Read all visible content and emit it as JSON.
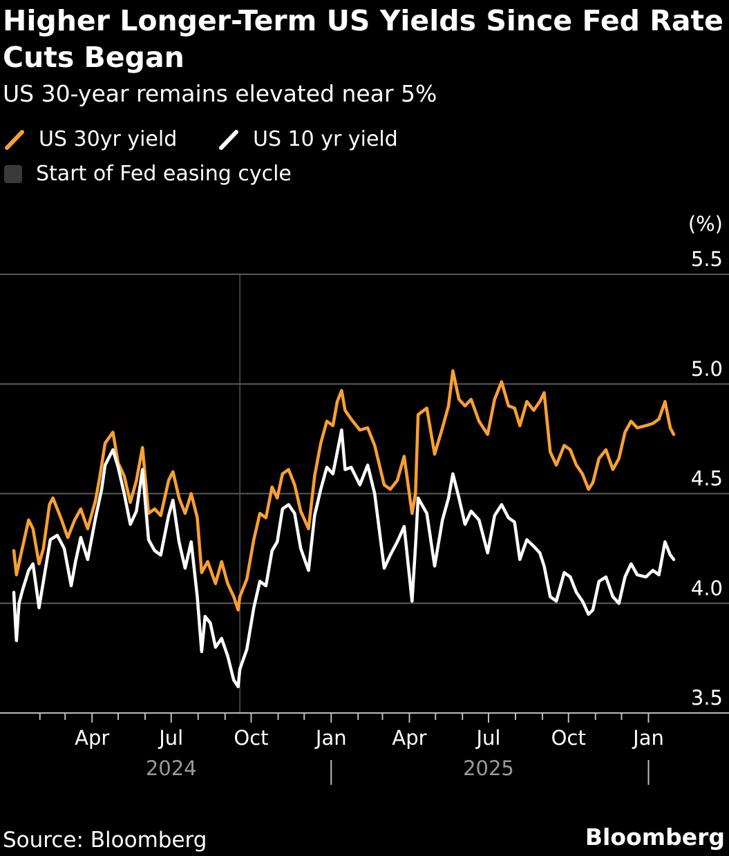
{
  "title": "Higher Longer-Term US Yields Since Fed Rate Cuts Began",
  "subtitle": "US 30-year remains elevated near 5%",
  "source": "Source: Bloomberg",
  "brand": "Bloomberg",
  "colors": {
    "background": "#000000",
    "series_30yr": "#f7a033",
    "series_10yr": "#ffffff",
    "event_line": "#555555",
    "gridline": "#5a5a5a"
  },
  "chart_data": {
    "type": "line",
    "title": "Higher Longer-Term US Yields Since Fed Rate Cuts Began",
    "subtitle": "US 30-year remains elevated near 5%",
    "ylabel": "(%)",
    "ylim": [
      3.5,
      5.5
    ],
    "yticks": [
      "3.5",
      "4.0",
      "4.5",
      "5.0",
      "5.5"
    ],
    "x_range": [
      "2024-01-02",
      "2026-01-30"
    ],
    "xticks": [
      {
        "label": "Apr",
        "date": "2024-04-01"
      },
      {
        "label": "Jul",
        "date": "2024-07-01"
      },
      {
        "label": "Oct",
        "date": "2024-10-01"
      },
      {
        "label": "Jan",
        "date": "2025-01-01"
      },
      {
        "label": "Apr",
        "date": "2025-04-01"
      },
      {
        "label": "Jul",
        "date": "2025-07-01"
      },
      {
        "label": "Oct",
        "date": "2025-10-01"
      },
      {
        "label": "Jan",
        "date": "2026-01-01"
      }
    ],
    "year_labels": [
      {
        "label": "2024",
        "date": "2024-07-01"
      },
      {
        "label": "2025",
        "date": "2025-07-01"
      }
    ],
    "year_dividers": [
      "2025-01-01",
      "2026-01-01"
    ],
    "legend": [
      "US 30yr yield",
      "US 10 yr yield",
      "Start of Fed easing cycle"
    ],
    "legend_placement": "top-left",
    "grid": "horizontal",
    "event": {
      "label": "Start of Fed easing cycle",
      "date": "2024-09-18"
    },
    "series": [
      {
        "name": "US 30yr yield",
        "color": "#f7a033",
        "points": [
          [
            "2024-01-02",
            4.24
          ],
          [
            "2024-01-05",
            4.13
          ],
          [
            "2024-01-10",
            4.22
          ],
          [
            "2024-01-19",
            4.38
          ],
          [
            "2024-01-24",
            4.34
          ],
          [
            "2024-01-31",
            4.18
          ],
          [
            "2024-02-05",
            4.25
          ],
          [
            "2024-02-12",
            4.45
          ],
          [
            "2024-02-16",
            4.48
          ],
          [
            "2024-02-26",
            4.38
          ],
          [
            "2024-03-04",
            4.3
          ],
          [
            "2024-03-12",
            4.38
          ],
          [
            "2024-03-19",
            4.43
          ],
          [
            "2024-03-27",
            4.34
          ],
          [
            "2024-04-05",
            4.47
          ],
          [
            "2024-04-10",
            4.58
          ],
          [
            "2024-04-16",
            4.73
          ],
          [
            "2024-04-25",
            4.78
          ],
          [
            "2024-05-01",
            4.64
          ],
          [
            "2024-05-08",
            4.58
          ],
          [
            "2024-05-15",
            4.46
          ],
          [
            "2024-05-22",
            4.56
          ],
          [
            "2024-05-29",
            4.71
          ],
          [
            "2024-06-05",
            4.41
          ],
          [
            "2024-06-12",
            4.43
          ],
          [
            "2024-06-19",
            4.4
          ],
          [
            "2024-06-28",
            4.56
          ],
          [
            "2024-07-03",
            4.6
          ],
          [
            "2024-07-10",
            4.48
          ],
          [
            "2024-07-17",
            4.41
          ],
          [
            "2024-07-24",
            4.5
          ],
          [
            "2024-07-31",
            4.39
          ],
          [
            "2024-08-05",
            4.14
          ],
          [
            "2024-08-12",
            4.19
          ],
          [
            "2024-08-21",
            4.09
          ],
          [
            "2024-08-28",
            4.19
          ],
          [
            "2024-09-04",
            4.09
          ],
          [
            "2024-09-11",
            4.03
          ],
          [
            "2024-09-16",
            3.97
          ],
          [
            "2024-09-18",
            4.03
          ],
          [
            "2024-09-26",
            4.11
          ],
          [
            "2024-10-04",
            4.29
          ],
          [
            "2024-10-11",
            4.41
          ],
          [
            "2024-10-18",
            4.39
          ],
          [
            "2024-10-25",
            4.53
          ],
          [
            "2024-10-31",
            4.48
          ],
          [
            "2024-11-06",
            4.59
          ],
          [
            "2024-11-13",
            4.61
          ],
          [
            "2024-11-20",
            4.54
          ],
          [
            "2024-11-27",
            4.42
          ],
          [
            "2024-12-06",
            4.34
          ],
          [
            "2024-12-13",
            4.58
          ],
          [
            "2024-12-20",
            4.73
          ],
          [
            "2024-12-27",
            4.83
          ],
          [
            "2025-01-03",
            4.81
          ],
          [
            "2025-01-08",
            4.92
          ],
          [
            "2025-01-13",
            4.97
          ],
          [
            "2025-01-17",
            4.88
          ],
          [
            "2025-01-24",
            4.84
          ],
          [
            "2025-02-03",
            4.79
          ],
          [
            "2025-02-12",
            4.8
          ],
          [
            "2025-02-20",
            4.72
          ],
          [
            "2025-03-03",
            4.54
          ],
          [
            "2025-03-10",
            4.52
          ],
          [
            "2025-03-18",
            4.56
          ],
          [
            "2025-03-26",
            4.67
          ],
          [
            "2025-04-04",
            4.41
          ],
          [
            "2025-04-08",
            4.5
          ],
          [
            "2025-04-11",
            4.86
          ],
          [
            "2025-04-21",
            4.89
          ],
          [
            "2025-04-30",
            4.68
          ],
          [
            "2025-05-09",
            4.8
          ],
          [
            "2025-05-16",
            4.9
          ],
          [
            "2025-05-21",
            5.06
          ],
          [
            "2025-05-28",
            4.93
          ],
          [
            "2025-06-04",
            4.9
          ],
          [
            "2025-06-11",
            4.93
          ],
          [
            "2025-06-20",
            4.83
          ],
          [
            "2025-06-30",
            4.77
          ],
          [
            "2025-07-08",
            4.93
          ],
          [
            "2025-07-16",
            5.01
          ],
          [
            "2025-07-24",
            4.9
          ],
          [
            "2025-07-31",
            4.89
          ],
          [
            "2025-08-06",
            4.81
          ],
          [
            "2025-08-14",
            4.92
          ],
          [
            "2025-08-22",
            4.88
          ],
          [
            "2025-08-29",
            4.92
          ],
          [
            "2025-09-03",
            4.96
          ],
          [
            "2025-09-10",
            4.69
          ],
          [
            "2025-09-17",
            4.63
          ],
          [
            "2025-09-26",
            4.72
          ],
          [
            "2025-10-03",
            4.7
          ],
          [
            "2025-10-10",
            4.63
          ],
          [
            "2025-10-17",
            4.59
          ],
          [
            "2025-10-24",
            4.52
          ],
          [
            "2025-10-29",
            4.55
          ],
          [
            "2025-11-05",
            4.66
          ],
          [
            "2025-11-13",
            4.7
          ],
          [
            "2025-11-21",
            4.61
          ],
          [
            "2025-11-28",
            4.66
          ],
          [
            "2025-12-05",
            4.78
          ],
          [
            "2025-12-12",
            4.83
          ],
          [
            "2025-12-19",
            4.8
          ],
          [
            "2025-12-29",
            4.81
          ],
          [
            "2026-01-06",
            4.82
          ],
          [
            "2026-01-13",
            4.84
          ],
          [
            "2026-01-20",
            4.92
          ],
          [
            "2026-01-26",
            4.8
          ],
          [
            "2026-01-30",
            4.77
          ]
        ]
      },
      {
        "name": "US 10 yr yield",
        "color": "#ffffff",
        "points": [
          [
            "2024-01-02",
            4.05
          ],
          [
            "2024-01-04",
            3.9
          ],
          [
            "2024-01-05",
            3.83
          ],
          [
            "2024-01-08",
            4.0
          ],
          [
            "2024-01-12",
            4.06
          ],
          [
            "2024-01-19",
            4.15
          ],
          [
            "2024-01-24",
            4.18
          ],
          [
            "2024-01-31",
            3.98
          ],
          [
            "2024-02-05",
            4.1
          ],
          [
            "2024-02-13",
            4.29
          ],
          [
            "2024-02-21",
            4.31
          ],
          [
            "2024-02-29",
            4.25
          ],
          [
            "2024-03-08",
            4.08
          ],
          [
            "2024-03-13",
            4.19
          ],
          [
            "2024-03-19",
            4.3
          ],
          [
            "2024-03-27",
            4.2
          ],
          [
            "2024-04-05",
            4.39
          ],
          [
            "2024-04-12",
            4.52
          ],
          [
            "2024-04-16",
            4.63
          ],
          [
            "2024-04-25",
            4.7
          ],
          [
            "2024-05-01",
            4.62
          ],
          [
            "2024-05-08",
            4.5
          ],
          [
            "2024-05-15",
            4.36
          ],
          [
            "2024-05-22",
            4.42
          ],
          [
            "2024-05-29",
            4.61
          ],
          [
            "2024-06-05",
            4.29
          ],
          [
            "2024-06-12",
            4.24
          ],
          [
            "2024-06-19",
            4.22
          ],
          [
            "2024-06-28",
            4.4
          ],
          [
            "2024-07-03",
            4.47
          ],
          [
            "2024-07-10",
            4.28
          ],
          [
            "2024-07-17",
            4.16
          ],
          [
            "2024-07-24",
            4.28
          ],
          [
            "2024-07-31",
            4.03
          ],
          [
            "2024-08-05",
            3.78
          ],
          [
            "2024-08-09",
            3.94
          ],
          [
            "2024-08-15",
            3.91
          ],
          [
            "2024-08-21",
            3.8
          ],
          [
            "2024-08-28",
            3.84
          ],
          [
            "2024-09-04",
            3.76
          ],
          [
            "2024-09-11",
            3.65
          ],
          [
            "2024-09-16",
            3.62
          ],
          [
            "2024-09-18",
            3.7
          ],
          [
            "2024-09-26",
            3.79
          ],
          [
            "2024-10-04",
            3.98
          ],
          [
            "2024-10-11",
            4.1
          ],
          [
            "2024-10-18",
            4.08
          ],
          [
            "2024-10-25",
            4.24
          ],
          [
            "2024-10-31",
            4.28
          ],
          [
            "2024-11-06",
            4.43
          ],
          [
            "2024-11-13",
            4.45
          ],
          [
            "2024-11-20",
            4.41
          ],
          [
            "2024-11-27",
            4.25
          ],
          [
            "2024-12-06",
            4.15
          ],
          [
            "2024-12-13",
            4.4
          ],
          [
            "2024-12-20",
            4.52
          ],
          [
            "2024-12-27",
            4.62
          ],
          [
            "2025-01-03",
            4.59
          ],
          [
            "2025-01-08",
            4.69
          ],
          [
            "2025-01-13",
            4.79
          ],
          [
            "2025-01-17",
            4.61
          ],
          [
            "2025-01-24",
            4.62
          ],
          [
            "2025-02-03",
            4.54
          ],
          [
            "2025-02-12",
            4.63
          ],
          [
            "2025-02-20",
            4.5
          ],
          [
            "2025-03-03",
            4.16
          ],
          [
            "2025-03-10",
            4.22
          ],
          [
            "2025-03-18",
            4.28
          ],
          [
            "2025-03-26",
            4.35
          ],
          [
            "2025-04-04",
            4.01
          ],
          [
            "2025-04-08",
            4.26
          ],
          [
            "2025-04-11",
            4.48
          ],
          [
            "2025-04-21",
            4.41
          ],
          [
            "2025-04-30",
            4.17
          ],
          [
            "2025-05-09",
            4.38
          ],
          [
            "2025-05-16",
            4.48
          ],
          [
            "2025-05-21",
            4.59
          ],
          [
            "2025-05-28",
            4.48
          ],
          [
            "2025-06-04",
            4.36
          ],
          [
            "2025-06-11",
            4.42
          ],
          [
            "2025-06-20",
            4.38
          ],
          [
            "2025-06-30",
            4.23
          ],
          [
            "2025-07-08",
            4.4
          ],
          [
            "2025-07-16",
            4.45
          ],
          [
            "2025-07-24",
            4.39
          ],
          [
            "2025-07-31",
            4.37
          ],
          [
            "2025-08-06",
            4.2
          ],
          [
            "2025-08-14",
            4.29
          ],
          [
            "2025-08-22",
            4.26
          ],
          [
            "2025-08-29",
            4.23
          ],
          [
            "2025-09-03",
            4.17
          ],
          [
            "2025-09-10",
            4.03
          ],
          [
            "2025-09-17",
            4.01
          ],
          [
            "2025-09-26",
            4.14
          ],
          [
            "2025-10-03",
            4.12
          ],
          [
            "2025-10-10",
            4.05
          ],
          [
            "2025-10-17",
            4.01
          ],
          [
            "2025-10-24",
            3.95
          ],
          [
            "2025-10-29",
            3.97
          ],
          [
            "2025-11-05",
            4.1
          ],
          [
            "2025-11-13",
            4.12
          ],
          [
            "2025-11-21",
            4.03
          ],
          [
            "2025-11-28",
            4.0
          ],
          [
            "2025-12-05",
            4.12
          ],
          [
            "2025-12-12",
            4.18
          ],
          [
            "2025-12-19",
            4.13
          ],
          [
            "2025-12-29",
            4.12
          ],
          [
            "2026-01-06",
            4.15
          ],
          [
            "2026-01-13",
            4.13
          ],
          [
            "2026-01-20",
            4.28
          ],
          [
            "2026-01-26",
            4.22
          ],
          [
            "2026-01-30",
            4.2
          ]
        ]
      }
    ]
  }
}
